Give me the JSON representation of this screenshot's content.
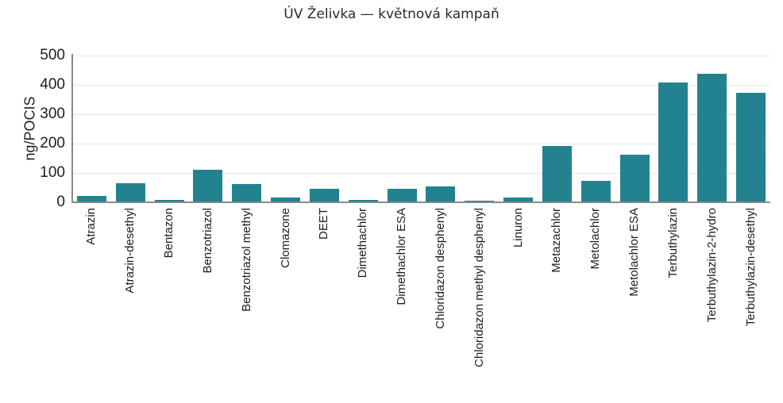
{
  "chart_data": {
    "type": "bar",
    "title": "ÚV Želivka — květnová kampaň",
    "xlabel": "",
    "ylabel": "ng/POCIS",
    "ylim": [
      0,
      500
    ],
    "yticks": [
      0,
      100,
      200,
      300,
      400,
      500
    ],
    "grid": true,
    "legend": null,
    "bar_color": "#23828f",
    "categories": [
      "Atrazin",
      "Atrazin-desethyl",
      "Bentazon",
      "Benzotriazol",
      "Benzotriazol methyl",
      "Clomazone",
      "DEET",
      "Dimethachlor",
      "Dimethachlor ESA",
      "Chloridazon desphenyl",
      "Chloridazon methyl desphenyl",
      "Linuron",
      "Metazachlor",
      "Metolachlor",
      "Metolachlor ESA",
      "Terbuthylazin",
      "Terbuthylazin-2-hydro",
      "Terbuthylazin-desethyl"
    ],
    "values": [
      23,
      66,
      7,
      110,
      61,
      15,
      45,
      9,
      45,
      55,
      6,
      15,
      192,
      74,
      162,
      409,
      439,
      372
    ]
  }
}
